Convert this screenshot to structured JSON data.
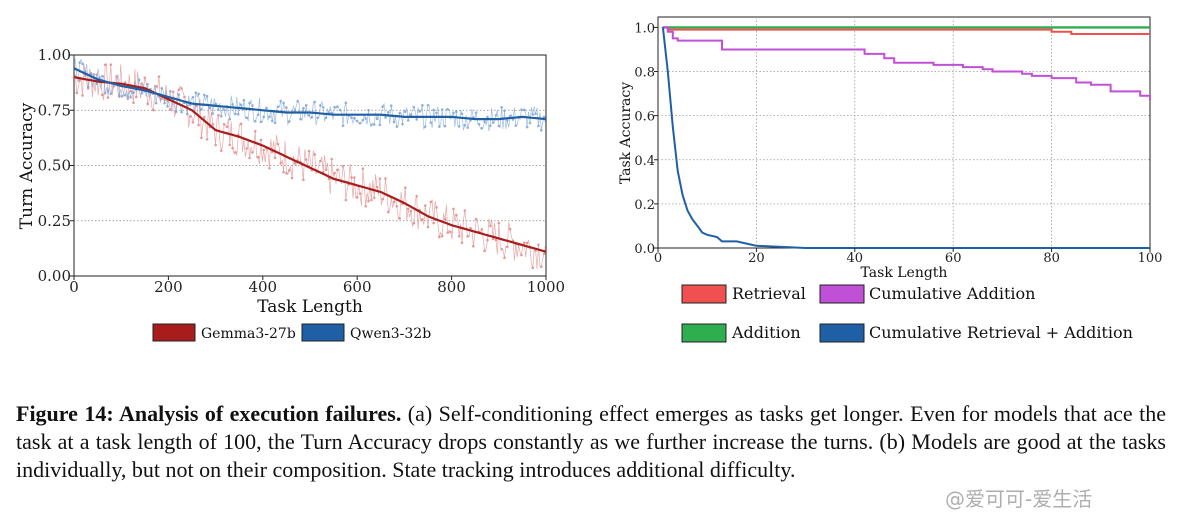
{
  "chart_data": [
    {
      "type": "line",
      "panel": "a",
      "xlabel": "Task Length",
      "ylabel": "Turn Accuracy",
      "xlim": [
        0,
        1000
      ],
      "ylim": [
        0.0,
        1.0
      ],
      "xticks": [
        "0",
        "200",
        "400",
        "600",
        "800",
        "1000"
      ],
      "yticks": [
        "0.00",
        "0.25",
        "0.50",
        "0.75",
        "1.00"
      ],
      "grid": "horizontal dotted",
      "legend_placement": "below",
      "series": [
        {
          "name": "Gemma3-27b",
          "color": "#a81c1c",
          "x": [
            0,
            50,
            100,
            150,
            200,
            250,
            300,
            350,
            400,
            450,
            500,
            550,
            600,
            650,
            700,
            750,
            800,
            850,
            900,
            950,
            1000
          ],
          "values": [
            0.9,
            0.88,
            0.87,
            0.85,
            0.8,
            0.75,
            0.66,
            0.63,
            0.59,
            0.54,
            0.49,
            0.44,
            0.41,
            0.38,
            0.33,
            0.27,
            0.23,
            0.2,
            0.17,
            0.14,
            0.11
          ]
        },
        {
          "name": "Qwen3-32b",
          "color": "#1f5fa6",
          "x": [
            0,
            50,
            100,
            150,
            200,
            250,
            300,
            350,
            400,
            450,
            500,
            550,
            600,
            650,
            700,
            750,
            800,
            850,
            900,
            950,
            1000
          ],
          "values": [
            0.94,
            0.89,
            0.86,
            0.84,
            0.81,
            0.78,
            0.77,
            0.76,
            0.75,
            0.74,
            0.74,
            0.73,
            0.73,
            0.73,
            0.72,
            0.72,
            0.72,
            0.71,
            0.71,
            0.72,
            0.71
          ]
        }
      ]
    },
    {
      "type": "line",
      "panel": "b",
      "xlabel": "Task Length",
      "ylabel": "Task Accuracy",
      "xlim": [
        0,
        100
      ],
      "ylim": [
        0.0,
        1.0
      ],
      "xticks": [
        "0",
        "20",
        "40",
        "60",
        "80",
        "100"
      ],
      "yticks": [
        "0.0",
        "0.2",
        "0.4",
        "0.6",
        "0.8",
        "1.0"
      ],
      "grid": "dotted both",
      "legend_placement": "below",
      "series": [
        {
          "name": "Retrieval",
          "color": "#f0504f",
          "x": [
            1,
            2,
            20,
            40,
            60,
            78,
            80,
            84,
            90,
            100
          ],
          "values": [
            1.0,
            0.99,
            0.99,
            0.99,
            0.99,
            0.99,
            0.98,
            0.97,
            0.97,
            0.97
          ]
        },
        {
          "name": "Addition",
          "color": "#2fae4f",
          "x": [
            1,
            20,
            40,
            60,
            80,
            100
          ],
          "values": [
            1.0,
            1.0,
            1.0,
            1.0,
            1.0,
            1.0
          ]
        },
        {
          "name": "Cumulative Addition",
          "color": "#c050d6",
          "x": [
            1,
            2,
            3,
            4,
            6,
            11,
            13,
            20,
            30,
            40,
            42,
            46,
            48,
            54,
            56,
            60,
            62,
            66,
            68,
            74,
            76,
            80,
            85,
            88,
            92,
            96,
            98,
            100
          ],
          "values": [
            1.0,
            0.98,
            0.95,
            0.94,
            0.94,
            0.94,
            0.9,
            0.9,
            0.9,
            0.9,
            0.88,
            0.86,
            0.84,
            0.84,
            0.83,
            0.83,
            0.82,
            0.81,
            0.8,
            0.79,
            0.78,
            0.77,
            0.75,
            0.74,
            0.71,
            0.71,
            0.69,
            0.67
          ]
        },
        {
          "name": "Cumulative Retrieval + Addition",
          "color": "#1f5fa6",
          "x": [
            1,
            2,
            3,
            4,
            5,
            6,
            7,
            8,
            9,
            10,
            12,
            13,
            16,
            18,
            20,
            25,
            30,
            40,
            60,
            80,
            100
          ],
          "values": [
            1.0,
            0.8,
            0.55,
            0.35,
            0.24,
            0.17,
            0.13,
            0.1,
            0.07,
            0.06,
            0.05,
            0.03,
            0.03,
            0.02,
            0.01,
            0.005,
            0.0,
            0.0,
            0.0,
            0.0,
            0.0
          ]
        }
      ]
    }
  ],
  "caption": {
    "label": "Figure 14: Analysis of execution failures.",
    "text": " (a) Self-conditioning effect emerges as tasks get longer. Even for models that ace the task at a task length of 100, the Turn Accuracy drops constantly as we further increase the turns. (b) Models are good at the tasks individually, but not on their composition. State tracking introduces additional difficulty."
  },
  "watermark": "@爱可可-爱生活"
}
